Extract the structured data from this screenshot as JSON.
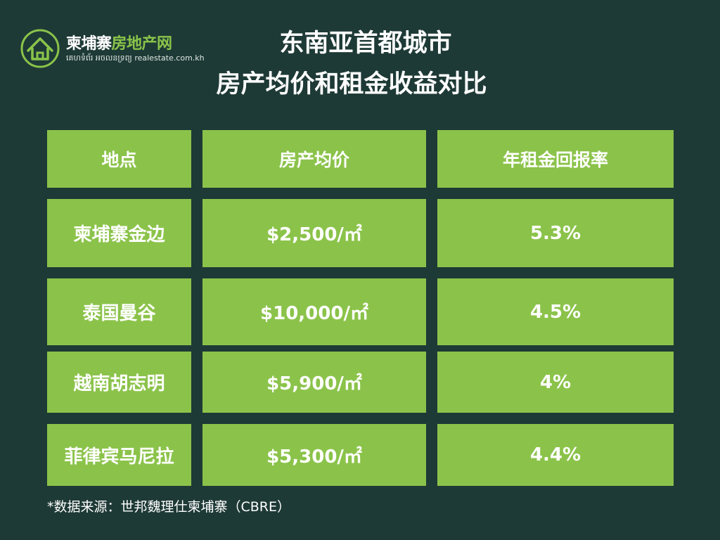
{
  "logo": {
    "icon": "house-icon",
    "name_part1": "柬埔寨",
    "name_part2": "房地产网",
    "subtitle": "គេហទំព័រ អចលនទ្រព្យ realestate.com.kh"
  },
  "title": {
    "line1": "东南亚首都城市",
    "line2": "房产均价和租金收益对比"
  },
  "table": {
    "headers": [
      "地点",
      "房产均价",
      "年租金回报率"
    ],
    "rows": [
      {
        "location": "柬埔寨金边",
        "price": "$2,500/㎡",
        "yield": "5.3%"
      },
      {
        "location": "泰国曼谷",
        "price": "$10,000/㎡",
        "yield": "4.5%"
      },
      {
        "location": "越南胡志明",
        "price": "$5,900/㎡",
        "yield": "4%"
      },
      {
        "location": "菲律宾马尼拉",
        "price": "$5,300/㎡",
        "yield": "4.4%"
      }
    ]
  },
  "footnote": "*数据来源：世邦魏理仕柬埔寨（CBRE）",
  "colors": {
    "background": "#1e3a36",
    "cell": "#8bc34a",
    "accent": "#8ac44a",
    "text": "#ffffff"
  }
}
